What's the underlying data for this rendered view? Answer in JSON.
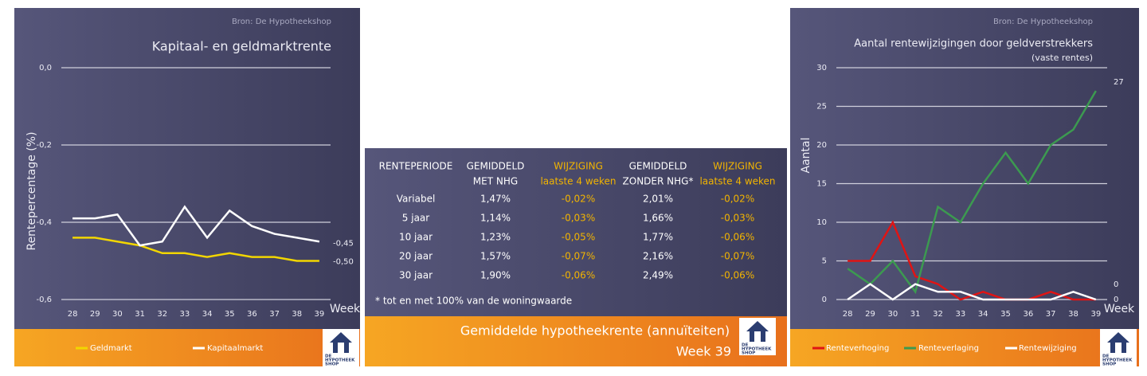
{
  "chart_data": [
    {
      "type": "line",
      "source": "Bron: De Hypotheekshop",
      "title": "Kapitaal- en geldmarktrente",
      "ylabel": "Rentepercentage (%)",
      "xlabel": "Week",
      "categories": [
        "28",
        "29",
        "30",
        "31",
        "32",
        "33",
        "34",
        "35",
        "36",
        "37",
        "38",
        "39"
      ],
      "series": [
        {
          "name": "Geldmarkt",
          "color": "#f2d600",
          "values": [
            -0.44,
            -0.44,
            -0.45,
            -0.46,
            -0.48,
            -0.48,
            -0.49,
            -0.48,
            -0.49,
            -0.49,
            -0.5,
            -0.5
          ],
          "value_labels": [
            null,
            null,
            null,
            null,
            null,
            null,
            null,
            null,
            null,
            null,
            null,
            "-0,50"
          ]
        },
        {
          "name": "Kapitaalmarkt",
          "color": "#ffffff",
          "values": [
            -0.39,
            -0.39,
            -0.38,
            -0.46,
            -0.45,
            -0.36,
            -0.44,
            -0.37,
            -0.41,
            -0.43,
            -0.44,
            -0.45
          ],
          "value_labels": [
            null,
            null,
            null,
            null,
            null,
            null,
            null,
            null,
            null,
            null,
            null,
            "-0,45"
          ]
        }
      ],
      "ylim": [
        -0.6,
        0
      ],
      "yticks": [
        {
          "value": -0.6,
          "label": "-0,6"
        },
        {
          "value": -0.4,
          "label": "-0,4"
        },
        {
          "value": -0.2,
          "label": "-0,2"
        },
        {
          "value": 0,
          "label": "0,0"
        }
      ],
      "grid": true,
      "legend": "bottom"
    },
    {
      "type": "line",
      "source": "Bron: De Hypotheekshop",
      "title": "Aantal rentewijzigingen door geldverstrekkers",
      "subtitle": "(vaste rentes)",
      "ylabel": "Aantal",
      "xlabel": "Week",
      "categories": [
        "28",
        "29",
        "30",
        "31",
        "32",
        "33",
        "34",
        "35",
        "36",
        "37",
        "38",
        "39"
      ],
      "series": [
        {
          "name": "Renteverhoging",
          "color": "#e01414",
          "values": [
            5,
            5,
            10,
            3,
            2,
            0,
            1,
            0,
            0,
            1,
            0,
            0
          ]
        },
        {
          "name": "Renteverlaging",
          "color": "#3c9a50",
          "values": [
            4,
            2,
            5,
            1,
            12,
            10,
            15,
            19,
            15,
            20,
            22,
            27
          ]
        },
        {
          "name": "Rentewijziging",
          "color": "#ffffff",
          "values": [
            0,
            2,
            0,
            2,
            1,
            1,
            0,
            0,
            0,
            0,
            1,
            0
          ]
        }
      ],
      "ylim": [
        0,
        30
      ],
      "yticks": [
        0,
        5,
        10,
        15,
        20,
        25,
        30
      ],
      "grid": true,
      "legend": "bottom"
    }
  ],
  "table": {
    "header": [
      [
        "RENTEPERIODE"
      ],
      [
        "GEMIDDELD",
        "MET NHG"
      ],
      [
        "WIJZIGING",
        "laatste 4 weken"
      ],
      [
        "GEMIDDELD",
        "ZONDER NHG*"
      ],
      [
        "WIJZIGING",
        "laatste 4 weken"
      ]
    ],
    "rows": [
      [
        "Variabel",
        "1,47%",
        "-0,02%",
        "2,01%",
        "-0,02%"
      ],
      [
        "5 jaar",
        "1,14%",
        "-0,03%",
        "1,66%",
        "-0,03%"
      ],
      [
        "10 jaar",
        "1,23%",
        "-0,05%",
        "1,77%",
        "-0,06%"
      ],
      [
        "20 jaar",
        "1,57%",
        "-0,07%",
        "2,16%",
        "-0,07%"
      ],
      [
        "30 jaar",
        "1,90%",
        "-0,06%",
        "2,49%",
        "-0,06%"
      ]
    ],
    "footnote": "* tot en met 100% van de woningwaarde",
    "title": "Gemiddelde hypotheekrente (annuïteiten)",
    "subtitle": "Week 39"
  },
  "logo": [
    "DE",
    "HYPOTHEEK",
    "SHOP"
  ]
}
